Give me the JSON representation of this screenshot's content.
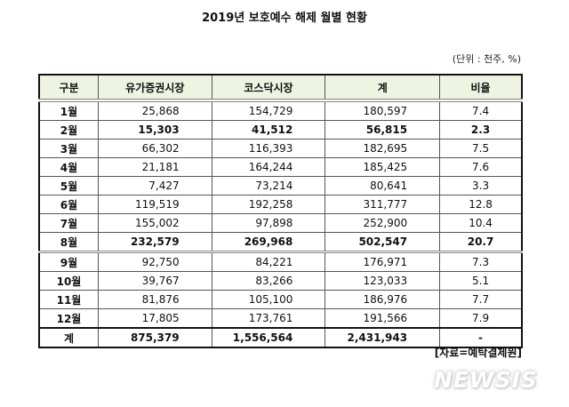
{
  "title": "2019년 보호예수 해제 월별 현황",
  "unit": "(단위 : 천주, %)",
  "table": {
    "headers": [
      "구분",
      "유가증권시장",
      "코스닥시장",
      "계",
      "비율"
    ],
    "rows": [
      {
        "label": "1월",
        "kospi": "25,868",
        "kosdaq": "154,729",
        "total": "180,597",
        "ratio": "7.4",
        "bold": false
      },
      {
        "label": "2월",
        "kospi": "15,303",
        "kosdaq": "41,512",
        "total": "56,815",
        "ratio": "2.3",
        "bold": true
      },
      {
        "label": "3월",
        "kospi": "66,302",
        "kosdaq": "116,393",
        "total": "182,695",
        "ratio": "7.5",
        "bold": false
      },
      {
        "label": "4월",
        "kospi": "21,181",
        "kosdaq": "164,244",
        "total": "185,425",
        "ratio": "7.6",
        "bold": false
      },
      {
        "label": "5월",
        "kospi": "7,427",
        "kosdaq": "73,214",
        "total": "80,641",
        "ratio": "3.3",
        "bold": false
      },
      {
        "label": "6월",
        "kospi": "119,519",
        "kosdaq": "192,258",
        "total": "311,777",
        "ratio": "12.8",
        "bold": false
      },
      {
        "label": "7월",
        "kospi": "155,002",
        "kosdaq": "97,898",
        "total": "252,900",
        "ratio": "10.4",
        "bold": false
      },
      {
        "label": "8월",
        "kospi": "232,579",
        "kosdaq": "269,968",
        "total": "502,547",
        "ratio": "20.7",
        "bold": true
      },
      {
        "label": "9월",
        "kospi": "92,750",
        "kosdaq": "84,221",
        "total": "176,971",
        "ratio": "7.3",
        "bold": false
      },
      {
        "label": "10월",
        "kospi": "39,767",
        "kosdaq": "83,266",
        "total": "123,033",
        "ratio": "5.1",
        "bold": false
      },
      {
        "label": "11월",
        "kospi": "81,876",
        "kosdaq": "105,100",
        "total": "186,976",
        "ratio": "7.7",
        "bold": false
      },
      {
        "label": "12월",
        "kospi": "17,805",
        "kosdaq": "173,761",
        "total": "191,566",
        "ratio": "7.9",
        "bold": false
      }
    ],
    "total": {
      "label": "계",
      "kospi": "875,379",
      "kosdaq": "1,556,564",
      "total": "2,431,943",
      "ratio": "-"
    }
  },
  "source": "[자료=예탁결제원]",
  "watermark": "NEWSIS"
}
